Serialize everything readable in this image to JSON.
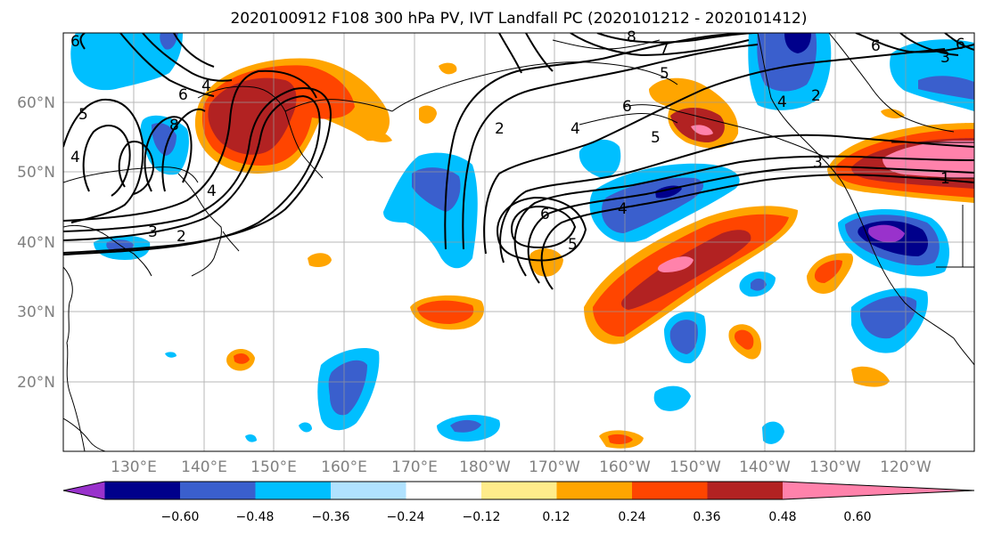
{
  "title": "2020100912 F108 300 hPa PV, IVT Landfall PC (2020101212 - 2020101412)",
  "lat_labels": [
    "60°N",
    "50°N",
    "40°N",
    "30°N",
    "20°N"
  ],
  "lon_labels": [
    "130°E",
    "140°E",
    "150°E",
    "160°E",
    "170°E",
    "180°W",
    "170°W",
    "160°W",
    "150°W",
    "140°W",
    "130°W",
    "120°W"
  ],
  "colorbar": {
    "ticks": [
      "−0.60",
      "−0.48",
      "−0.36",
      "−0.24",
      "−0.12",
      "0.12",
      "0.24",
      "0.36",
      "0.48",
      "0.60"
    ],
    "colors": [
      "#9932cc",
      "#00008b",
      "#3a5fcd",
      "#00bfff",
      "#b0e2ff",
      "#ffffff",
      "#ffec8b",
      "#ffa500",
      "#ff4500",
      "#b22222",
      "#ff82ab"
    ]
  },
  "contour_labels": [
    "6",
    "5",
    "6",
    "4",
    "8",
    "4",
    "3",
    "2",
    "4",
    "2",
    "4",
    "5",
    "6",
    "5",
    "6",
    "4",
    "5",
    "2",
    "3",
    "4",
    "7",
    "8",
    "6",
    "1",
    "3",
    "6"
  ]
}
